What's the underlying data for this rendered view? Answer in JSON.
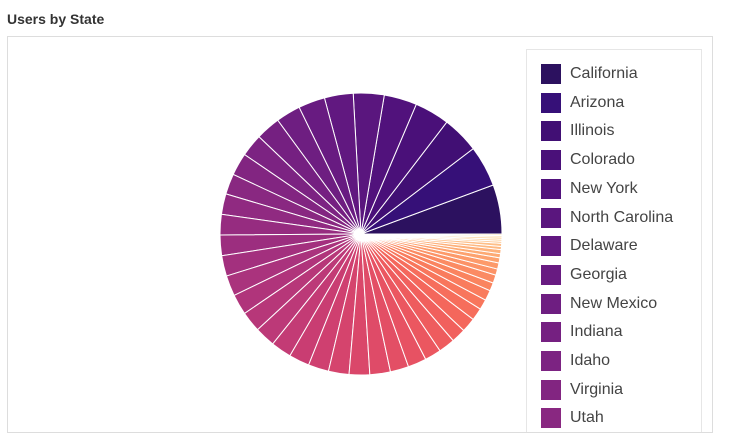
{
  "header": {
    "title": "Users by State"
  },
  "chart_data": {
    "type": "pie",
    "title": "Users by State",
    "legend_position": "right",
    "slices": [
      {
        "label": "California",
        "value": 24,
        "color": "#2c115f"
      },
      {
        "label": "Arizona",
        "value": 20,
        "color": "#361078"
      },
      {
        "label": "Illinois",
        "value": 18,
        "color": "#410f74"
      },
      {
        "label": "Colorado",
        "value": 17,
        "color": "#4a1079"
      },
      {
        "label": "New York",
        "value": 16,
        "color": "#51127c"
      },
      {
        "label": "North Carolina",
        "value": 15,
        "color": "#5a167e"
      },
      {
        "label": "Delaware",
        "value": 14,
        "color": "#611880"
      },
      {
        "label": "Georgia",
        "value": 13,
        "color": "#681b81"
      },
      {
        "label": "New Mexico",
        "value": 12,
        "color": "#6e1e81"
      },
      {
        "label": "Indiana",
        "value": 12,
        "color": "#752081"
      },
      {
        "label": "Idaho",
        "value": 11,
        "color": "#7c2382"
      },
      {
        "label": "Virginia",
        "value": 11,
        "color": "#822581"
      },
      {
        "label": "Utah",
        "value": 10,
        "color": "#892881"
      },
      {
        "value": 10,
        "color": "#902a81"
      },
      {
        "value": 10,
        "color": "#962c80"
      },
      {
        "value": 10,
        "color": "#9c2e7f"
      },
      {
        "value": 10,
        "color": "#a3307e"
      },
      {
        "value": 10,
        "color": "#aa337d"
      },
      {
        "value": 10,
        "color": "#b0347b"
      },
      {
        "value": 10,
        "color": "#b73779"
      },
      {
        "value": 10,
        "color": "#bc3978"
      },
      {
        "value": 10,
        "color": "#c33b75"
      },
      {
        "value": 10,
        "color": "#c93d72"
      },
      {
        "value": 10,
        "color": "#cf4070"
      },
      {
        "value": 10,
        "color": "#d5446d"
      },
      {
        "value": 10,
        "color": "#da476a"
      },
      {
        "value": 10,
        "color": "#df4b68"
      },
      {
        "value": 9,
        "color": "#e34f65"
      },
      {
        "value": 9,
        "color": "#e75263"
      },
      {
        "value": 8,
        "color": "#eb5760"
      },
      {
        "value": 8,
        "color": "#ee5c5e"
      },
      {
        "value": 7,
        "color": "#f1605d"
      },
      {
        "value": 7,
        "color": "#f4675c"
      },
      {
        "value": 6,
        "color": "#f66e5c"
      },
      {
        "value": 5,
        "color": "#f8765c"
      },
      {
        "value": 5,
        "color": "#f97c5d"
      },
      {
        "value": 4,
        "color": "#fa845f"
      },
      {
        "value": 4,
        "color": "#fb8b63"
      },
      {
        "value": 3,
        "color": "#fc9367"
      },
      {
        "value": 3,
        "color": "#fd9a6a"
      },
      {
        "value": 2.5,
        "color": "#fda26f"
      },
      {
        "value": 2,
        "color": "#fdaa74"
      },
      {
        "value": 2,
        "color": "#feb17b"
      },
      {
        "value": 1.5,
        "color": "#feb881"
      },
      {
        "value": 1.5,
        "color": "#febf88"
      },
      {
        "value": 1,
        "color": "#fec68f"
      },
      {
        "value": 1,
        "color": "#fecd96"
      },
      {
        "value": 1,
        "color": "#fed49d"
      },
      {
        "value": 0.8,
        "color": "#fddba5"
      },
      {
        "value": 0.7,
        "color": "#fde2ad"
      }
    ]
  }
}
